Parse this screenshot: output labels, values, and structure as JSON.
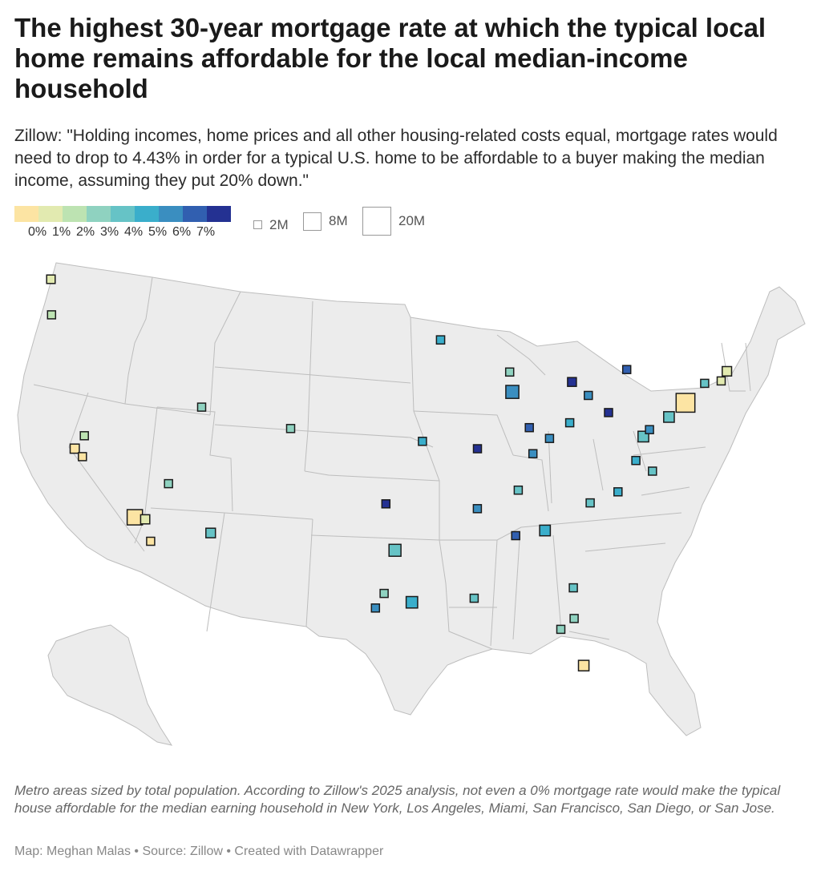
{
  "title": "The highest 30-year mortgage rate at which the typical local home remains affordable for the local median-income household",
  "subtitle": "Zillow: \"Holding incomes, home prices and all other housing-related costs equal, mortgage rates would need to drop to 4.43% in order for a typical U.S. home to be affordable to a buyer making the median income, assuming they put 20% down.\"",
  "color_legend": {
    "colors": [
      "#fce4a3",
      "#e2eab0",
      "#bde3b2",
      "#8fd2c0",
      "#66c3c6",
      "#3aaecb",
      "#3a8ec0",
      "#315fb0",
      "#243192"
    ],
    "labels": [
      "0%",
      "1%",
      "2%",
      "3%",
      "4%",
      "5%",
      "6%",
      "7%"
    ]
  },
  "size_legend": [
    {
      "label": "2M",
      "population": 2
    },
    {
      "label": "8M",
      "population": 8
    },
    {
      "label": "20M",
      "population": 20
    }
  ],
  "map": {
    "land_color": "#ececec",
    "border_color": "#bdbdbd",
    "marker_stroke": "#1a1a1a",
    "metros": [
      {
        "id": "bellingham-seattle",
        "lon": -122.33,
        "lat": 47.61,
        "rate": 1.0,
        "pop": 4.0
      },
      {
        "id": "portland",
        "lon": -122.68,
        "lat": 45.52,
        "rate": 2.8,
        "pop": 2.5
      },
      {
        "id": "sacramento",
        "lon": -121.49,
        "lat": 38.58,
        "rate": 2.6,
        "pop": 2.4
      },
      {
        "id": "san-francisco",
        "lon": -122.42,
        "lat": 37.77,
        "rate": 0.0,
        "pop": 4.6
      },
      {
        "id": "san-jose",
        "lon": -121.89,
        "lat": 37.34,
        "rate": 0.0,
        "pop": 2.0
      },
      {
        "id": "los-angeles",
        "lon": -118.24,
        "lat": 34.05,
        "rate": 0.0,
        "pop": 13.0
      },
      {
        "id": "riverside",
        "lon": -117.4,
        "lat": 33.98,
        "rate": 1.3,
        "pop": 4.6
      },
      {
        "id": "san-diego",
        "lon": -117.16,
        "lat": 32.72,
        "rate": 0.0,
        "pop": 3.3
      },
      {
        "id": "las-vegas",
        "lon": -115.14,
        "lat": 36.17,
        "rate": 3.2,
        "pop": 2.3
      },
      {
        "id": "phoenix",
        "lon": -112.07,
        "lat": 33.45,
        "rate": 4.6,
        "pop": 5.0
      },
      {
        "id": "salt-lake-city",
        "lon": -111.89,
        "lat": 40.76,
        "rate": 3.7,
        "pop": 1.3
      },
      {
        "id": "denver",
        "lon": -104.99,
        "lat": 39.74,
        "rate": 3.3,
        "pop": 3.0
      },
      {
        "id": "oklahoma-city",
        "lon": -97.52,
        "lat": 35.47,
        "rate": 7.5,
        "pop": 1.4
      },
      {
        "id": "dallas",
        "lon": -96.8,
        "lat": 32.78,
        "rate": 4.4,
        "pop": 7.9
      },
      {
        "id": "austin",
        "lon": -97.74,
        "lat": 30.27,
        "rate": 3.5,
        "pop": 2.4
      },
      {
        "id": "san-antonio",
        "lon": -98.49,
        "lat": 29.42,
        "rate": 6.2,
        "pop": 2.7
      },
      {
        "id": "houston",
        "lon": -95.37,
        "lat": 29.76,
        "rate": 5.9,
        "pop": 7.3
      },
      {
        "id": "kansas-city",
        "lon": -94.58,
        "lat": 39.1,
        "rate": 5.6,
        "pop": 2.2
      },
      {
        "id": "minneapolis",
        "lon": -93.27,
        "lat": 44.98,
        "rate": 5.8,
        "pop": 3.7
      },
      {
        "id": "st-louis",
        "lon": -90.2,
        "lat": 38.63,
        "rate": 7.6,
        "pop": 2.8
      },
      {
        "id": "memphis",
        "lon": -90.05,
        "lat": 35.15,
        "rate": 6.8,
        "pop": 1.3
      },
      {
        "id": "new-orleans",
        "lon": -90.07,
        "lat": 29.95,
        "rate": 4.0,
        "pop": 1.3
      },
      {
        "id": "milwaukee",
        "lon": -87.91,
        "lat": 43.04,
        "rate": 3.8,
        "pop": 1.6
      },
      {
        "id": "chicago",
        "lon": -87.63,
        "lat": 41.88,
        "rate": 6.1,
        "pop": 9.4
      },
      {
        "id": "indianapolis",
        "lon": -86.16,
        "lat": 39.77,
        "rate": 7.0,
        "pop": 2.1
      },
      {
        "id": "louisville",
        "lon": -85.76,
        "lat": 38.25,
        "rate": 6.6,
        "pop": 1.3
      },
      {
        "id": "nashville",
        "lon": -86.78,
        "lat": 36.16,
        "rate": 4.2,
        "pop": 2.0
      },
      {
        "id": "birmingham",
        "lon": -86.8,
        "lat": 33.52,
        "rate": 7.3,
        "pop": 1.2
      },
      {
        "id": "atlanta",
        "lon": -84.39,
        "lat": 33.75,
        "rate": 5.8,
        "pop": 6.3
      },
      {
        "id": "detroit",
        "lon": -83.05,
        "lat": 42.33,
        "rate": 7.9,
        "pop": 4.3
      },
      {
        "id": "cincinnati",
        "lon": -84.51,
        "lat": 39.1,
        "rate": 6.8,
        "pop": 2.2
      },
      {
        "id": "columbus",
        "lon": -82.99,
        "lat": 39.96,
        "rate": 5.6,
        "pop": 2.1
      },
      {
        "id": "cleveland",
        "lon": -81.69,
        "lat": 41.5,
        "rate": 6.9,
        "pop": 2.1
      },
      {
        "id": "pittsburgh",
        "lon": -79.99,
        "lat": 40.44,
        "rate": 7.6,
        "pop": 2.4
      },
      {
        "id": "buffalo",
        "lon": -78.88,
        "lat": 42.89,
        "rate": 7.2,
        "pop": 1.2
      },
      {
        "id": "charlotte",
        "lon": -80.84,
        "lat": 35.23,
        "rate": 4.4,
        "pop": 2.7
      },
      {
        "id": "raleigh",
        "lon": -78.64,
        "lat": 35.78,
        "rate": 5.6,
        "pop": 1.5
      },
      {
        "id": "richmond",
        "lon": -77.44,
        "lat": 37.54,
        "rate": 5.0,
        "pop": 1.3
      },
      {
        "id": "virginia-beach",
        "lon": -76.0,
        "lat": 36.85,
        "rate": 4.5,
        "pop": 1.8
      },
      {
        "id": "washington-dc",
        "lon": -77.04,
        "lat": 38.91,
        "rate": 4.5,
        "pop": 6.3
      },
      {
        "id": "baltimore",
        "lon": -76.61,
        "lat": 39.29,
        "rate": 6.2,
        "pop": 2.8
      },
      {
        "id": "philadelphia",
        "lon": -75.17,
        "lat": 39.95,
        "rate": 4.7,
        "pop": 6.2
      },
      {
        "id": "new-york",
        "lon": -74.0,
        "lat": 40.71,
        "rate": 0.0,
        "pop": 19.5
      },
      {
        "id": "hartford",
        "lon": -72.68,
        "lat": 41.76,
        "rate": 4.6,
        "pop": 1.2
      },
      {
        "id": "providence",
        "lon": -71.41,
        "lat": 41.82,
        "rate": 1.8,
        "pop": 1.7
      },
      {
        "id": "boston",
        "lon": -71.06,
        "lat": 42.36,
        "rate": 1.1,
        "pop": 4.9
      },
      {
        "id": "jacksonville",
        "lon": -81.66,
        "lat": 30.33,
        "rate": 4.4,
        "pop": 1.6
      },
      {
        "id": "orlando",
        "lon": -81.38,
        "lat": 28.54,
        "rate": 3.3,
        "pop": 2.7
      },
      {
        "id": "tampa",
        "lon": -82.46,
        "lat": 27.95,
        "rate": 3.0,
        "pop": 3.2
      },
      {
        "id": "miami",
        "lon": -80.19,
        "lat": 25.76,
        "rate": 0.0,
        "pop": 6.1
      }
    ]
  },
  "notes": "Metro areas sized by total population. According to Zillow's 2025 analysis, not even a 0% mortgage rate would make the typical house affordable for the median earning household in New York, Los Angeles, Miami, San Francisco, San Diego, or San Jose.",
  "byline": "Map: Meghan Malas • Source: Zillow • Created with Datawrapper"
}
